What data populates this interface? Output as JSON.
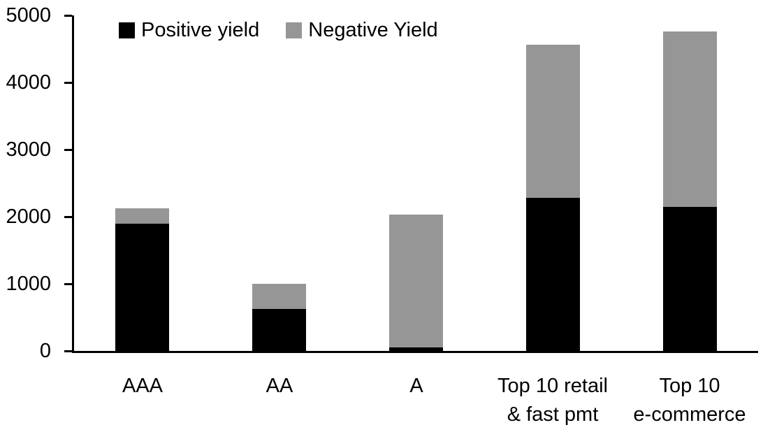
{
  "chart_data": {
    "type": "bar",
    "stacked": true,
    "title": "",
    "xlabel": "",
    "ylabel": "",
    "categories": [
      [
        "AAA"
      ],
      [
        "AA"
      ],
      [
        "A"
      ],
      [
        "Top 10 retail",
        "& fast pmt"
      ],
      [
        "Top 10",
        "e-commerce"
      ]
    ],
    "series": [
      {
        "name": "Positive yield",
        "color": "#000000",
        "values": [
          1900,
          620,
          50,
          2280,
          2150
        ]
      },
      {
        "name": "Negative Yield",
        "color": "#969696",
        "values": [
          220,
          380,
          1980,
          2280,
          2610
        ]
      }
    ],
    "totals": [
      2120,
      1000,
      2030,
      4560,
      4760
    ],
    "ylim": [
      0,
      5000
    ],
    "ytick_labels": [
      "0",
      "1000",
      "2000",
      "3000",
      "4000",
      "5000"
    ],
    "ytick_values": [
      0,
      1000,
      2000,
      3000,
      4000,
      5000
    ],
    "legend_position": "top",
    "grid": false,
    "axis_color": "#000000",
    "background_color": "#ffffff"
  }
}
